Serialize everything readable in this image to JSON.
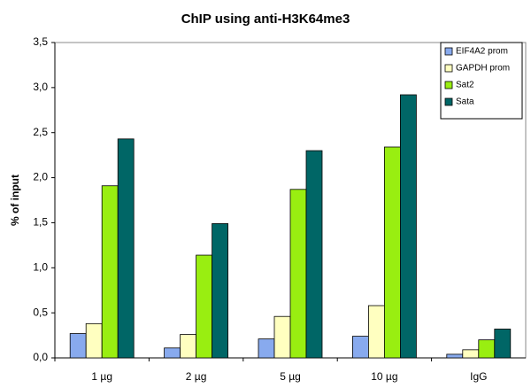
{
  "chart_data": {
    "type": "bar",
    "title": "ChIP using anti-H3K64me3",
    "y_label": "% of input",
    "categories": [
      "1 µg",
      "2 µg",
      "5 µg",
      "10 µg",
      "IgG"
    ],
    "series": [
      {
        "name": "EIF4A2 prom",
        "color": "#88aaee",
        "values": [
          0.27,
          0.11,
          0.21,
          0.24,
          0.04
        ]
      },
      {
        "name": "GAPDH prom",
        "color": "#ffffc0",
        "values": [
          0.38,
          0.26,
          0.46,
          0.58,
          0.09
        ]
      },
      {
        "name": "Sat2",
        "color": "#99ee11",
        "values": [
          1.91,
          1.14,
          1.87,
          2.34,
          0.2
        ]
      },
      {
        "name": "Sata",
        "color": "#006666",
        "values": [
          2.43,
          1.49,
          2.3,
          2.92,
          0.32
        ]
      }
    ],
    "ylim": [
      0,
      3.5
    ],
    "yticks": [
      {
        "value": 0,
        "label": "0,0"
      },
      {
        "value": 0.5,
        "label": "0,5"
      },
      {
        "value": 1,
        "label": "1,0"
      },
      {
        "value": 1.5,
        "label": "1,5"
      },
      {
        "value": 2,
        "label": "2,0"
      },
      {
        "value": 2.5,
        "label": "2,5"
      },
      {
        "value": 3,
        "label": "3,0"
      },
      {
        "value": 3.5,
        "label": "3,5"
      }
    ],
    "grid": false,
    "legend": "top-right"
  }
}
